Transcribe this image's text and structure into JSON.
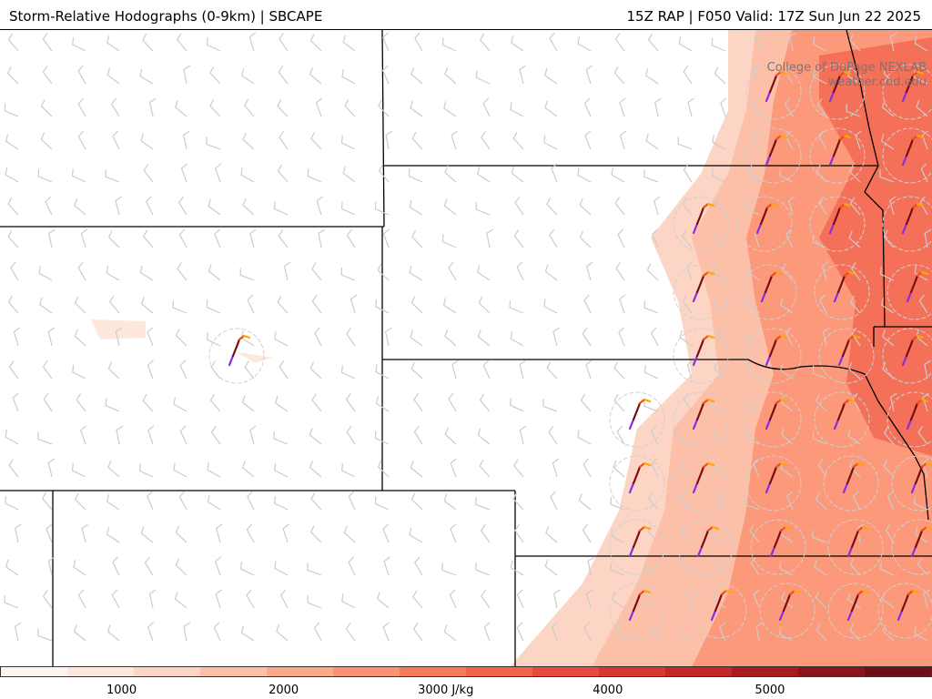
{
  "header": {
    "title_left": "Storm-Relative Hodographs (0-9km) | SBCAPE",
    "title_right": "15Z RAP | F050 Valid: 17Z Sun Jun 22 2025"
  },
  "credit": {
    "line1": "College of DuPage NEXLAB",
    "line2": "weather.cod.edu"
  },
  "colorbar": {
    "colors": [
      "#fff5f0",
      "#fee8dd",
      "#fdd5c4",
      "#fcbfa8",
      "#fca98c",
      "#fb9273",
      "#f77b5f",
      "#f1634d",
      "#e64a3c",
      "#d6372f",
      "#c12926",
      "#a61c20",
      "#8a141b",
      "#6e1016"
    ],
    "labels": [
      {
        "text": "1000",
        "value": 1000
      },
      {
        "text": "2000",
        "value": 2000
      },
      {
        "text": "3000 J/kg",
        "value": 3000
      },
      {
        "text": "4000",
        "value": 4000
      },
      {
        "text": "5000",
        "value": 5000
      }
    ],
    "range": [
      250,
      6000
    ]
  },
  "legend_colors": {
    "hodo_low": "#8a2be2",
    "hodo_mid": "#7a0c0c",
    "hodo_upper": "#e8501a",
    "hodo_top": "#ffa500",
    "barb": "#cccccc",
    "border": "#000000"
  }
}
